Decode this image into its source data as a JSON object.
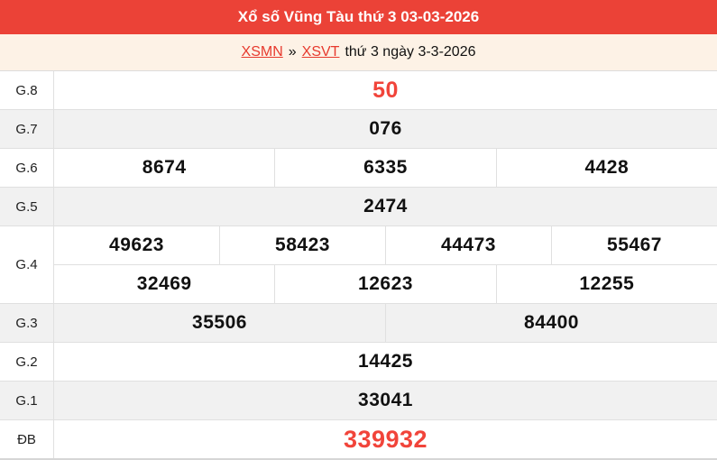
{
  "colors": {
    "header_bg": "#eb4237",
    "accent_red": "#f1443a",
    "page_bg": "#fdf2e6",
    "row_alt_bg": "#f1f1f1",
    "border": "#e0e0e0"
  },
  "header": {
    "title": "Xổ số Vũng Tàu thứ 3 03-03-2026"
  },
  "breadcrumb": {
    "link_region": "XSMN",
    "separator": "»",
    "link_province": "XSVT",
    "suffix": "thứ 3 ngày 3-3-2026"
  },
  "results": {
    "rows": [
      {
        "label": "G.8",
        "cells": [
          "50"
        ]
      },
      {
        "label": "G.7",
        "cells": [
          "076"
        ]
      },
      {
        "label": "G.6",
        "cells": [
          "8674",
          "6335",
          "4428"
        ]
      },
      {
        "label": "G.5",
        "cells": [
          "2474"
        ]
      },
      {
        "label": "G.4",
        "line1": [
          "49623",
          "58423",
          "44473",
          "55467"
        ],
        "line2": [
          "32469",
          "12623",
          "12255"
        ]
      },
      {
        "label": "G.3",
        "cells": [
          "35506",
          "84400"
        ]
      },
      {
        "label": "G.2",
        "cells": [
          "14425"
        ]
      },
      {
        "label": "G.1",
        "cells": [
          "33041"
        ]
      },
      {
        "label": "ĐB",
        "cells": [
          "339932"
        ]
      }
    ]
  }
}
